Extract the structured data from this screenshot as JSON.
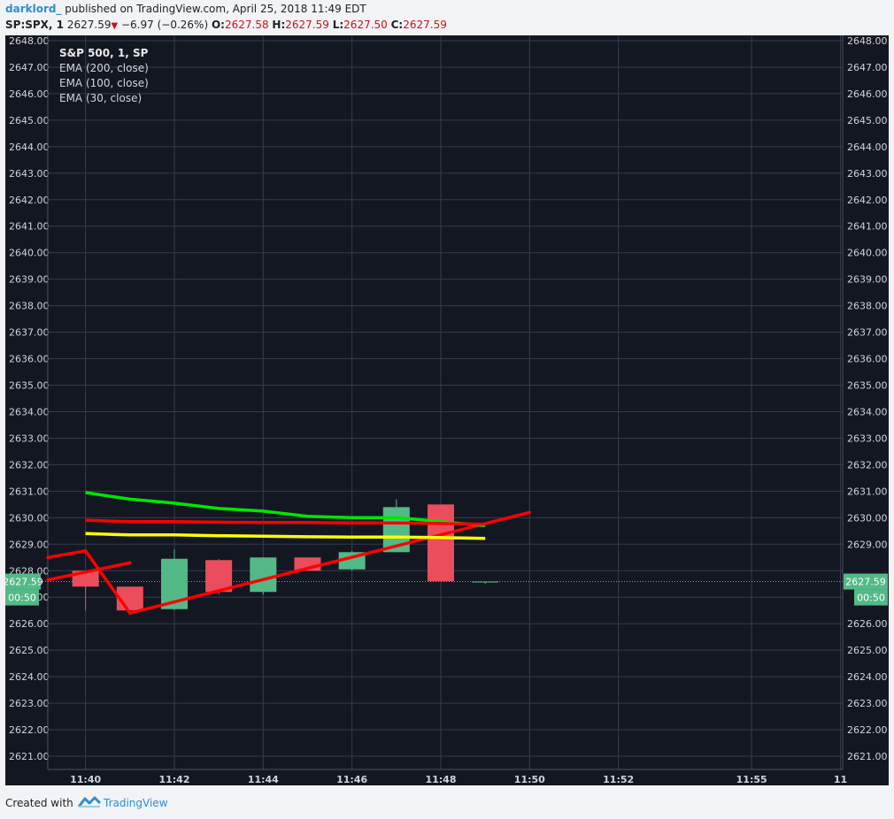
{
  "header": {
    "author": "darklord_",
    "published": "published on TradingView.com, April 25, 2018 11:49 EDT",
    "symbol": "SP:SPX, 1",
    "last": "2627.59",
    "change": "−6.97 (−0.26%)",
    "o_label": "O:",
    "o_val": "2627.58",
    "h_label": "H:",
    "h_val": "2627.59",
    "l_label": "L:",
    "l_val": "2627.50",
    "c_label": "C:",
    "c_val": "2627.59"
  },
  "legend": {
    "title": "S&P 500, 1, SP",
    "lines": [
      "EMA (200, close)",
      "EMA (100, close)",
      "EMA (30, close)"
    ]
  },
  "price_badge": "2627.59",
  "time_badge": "00:50",
  "footer": {
    "created": "Created with",
    "brand": "TradingView"
  },
  "colors": {
    "up": "#53b987",
    "down": "#eb4d5c",
    "ema200": "#00e600",
    "ema100": "#ff0000",
    "ema30": "#ffff00",
    "trend": "#ff0000",
    "bg": "#131722",
    "grid": "#363c4e"
  },
  "chart_data": {
    "type": "candlestick",
    "ylim": [
      2620.5,
      2648.2
    ],
    "y_ticks": [
      "2621.00",
      "2622.00",
      "2623.00",
      "2624.00",
      "2625.00",
      "2626.00",
      "2627.00",
      "2628.00",
      "2629.00",
      "2630.00",
      "2631.00",
      "2632.00",
      "2633.00",
      "2634.00",
      "2635.00",
      "2636.00",
      "2637.00",
      "2638.00",
      "2639.00",
      "2640.00",
      "2641.00",
      "2642.00",
      "2643.00",
      "2644.00",
      "2645.00",
      "2646.00",
      "2647.00",
      "2648.00"
    ],
    "right_hidden_ticks": [
      "2627.00",
      "2628.00"
    ],
    "x_ticks": [
      {
        "t": 0,
        "label": "11:40"
      },
      {
        "t": 2,
        "label": "11:42"
      },
      {
        "t": 4,
        "label": "11:44"
      },
      {
        "t": 6,
        "label": "11:46"
      },
      {
        "t": 8,
        "label": "11:48"
      },
      {
        "t": 10,
        "label": "11:50"
      },
      {
        "t": 12,
        "label": "11:52"
      },
      {
        "t": 15,
        "label": "11:55"
      },
      {
        "t": 17,
        "label": "11"
      }
    ],
    "xlim": [
      -0.85,
      17.05
    ],
    "candles": [
      {
        "t": 0,
        "open": 2628.0,
        "high": 2628.0,
        "low": 2626.5,
        "close": 2627.4
      },
      {
        "t": 1,
        "open": 2627.4,
        "high": 2627.4,
        "low": 2626.5,
        "close": 2626.5
      },
      {
        "t": 2,
        "open": 2626.55,
        "high": 2628.8,
        "low": 2626.5,
        "close": 2628.45
      },
      {
        "t": 3,
        "open": 2628.4,
        "high": 2628.45,
        "low": 2627.1,
        "close": 2627.2
      },
      {
        "t": 4,
        "open": 2627.2,
        "high": 2628.5,
        "low": 2627.1,
        "close": 2628.5
      },
      {
        "t": 5,
        "open": 2628.5,
        "high": 2628.5,
        "low": 2628.0,
        "close": 2628.0
      },
      {
        "t": 6,
        "open": 2628.05,
        "high": 2628.75,
        "low": 2628.0,
        "close": 2628.7
      },
      {
        "t": 7,
        "open": 2628.7,
        "high": 2630.7,
        "low": 2628.7,
        "close": 2630.4
      },
      {
        "t": 8,
        "open": 2630.5,
        "high": 2630.5,
        "low": 2627.6,
        "close": 2627.6
      },
      {
        "t": 9,
        "open": 2627.58,
        "high": 2627.59,
        "low": 2627.5,
        "close": 2627.59
      }
    ],
    "series": [
      {
        "name": "EMA (200, close)",
        "points": [
          [
            0,
            2630.95
          ],
          [
            1,
            2630.7
          ],
          [
            2,
            2630.55
          ],
          [
            3,
            2630.35
          ],
          [
            4,
            2630.25
          ],
          [
            5,
            2630.05
          ],
          [
            6,
            2630.0
          ],
          [
            7,
            2630.0
          ],
          [
            8,
            2629.85
          ],
          [
            9,
            2629.7
          ]
        ]
      },
      {
        "name": "EMA (100, close)",
        "points": [
          [
            0,
            2629.9
          ],
          [
            1,
            2629.85
          ],
          [
            2,
            2629.85
          ],
          [
            3,
            2629.83
          ],
          [
            4,
            2629.82
          ],
          [
            5,
            2629.82
          ],
          [
            6,
            2629.8
          ],
          [
            7,
            2629.8
          ],
          [
            8,
            2629.78
          ],
          [
            9,
            2629.75
          ]
        ]
      },
      {
        "name": "EMA (30, close)",
        "points": [
          [
            0,
            2629.4
          ],
          [
            1,
            2629.35
          ],
          [
            2,
            2629.35
          ],
          [
            3,
            2629.32
          ],
          [
            4,
            2629.3
          ],
          [
            5,
            2629.28
          ],
          [
            6,
            2629.27
          ],
          [
            7,
            2629.27
          ],
          [
            8,
            2629.25
          ],
          [
            9,
            2629.22
          ]
        ]
      }
    ],
    "trendlines": [
      [
        [
          -0.85,
          2628.5
        ],
        [
          0,
          2628.75
        ]
      ],
      [
        [
          0,
          2628.75
        ],
        [
          1,
          2626.4
        ]
      ],
      [
        [
          -0.85,
          2627.65
        ],
        [
          1,
          2628.3
        ]
      ],
      [
        [
          1,
          2626.4
        ],
        [
          10,
          2630.2
        ]
      ]
    ],
    "last_price": 2627.59
  }
}
